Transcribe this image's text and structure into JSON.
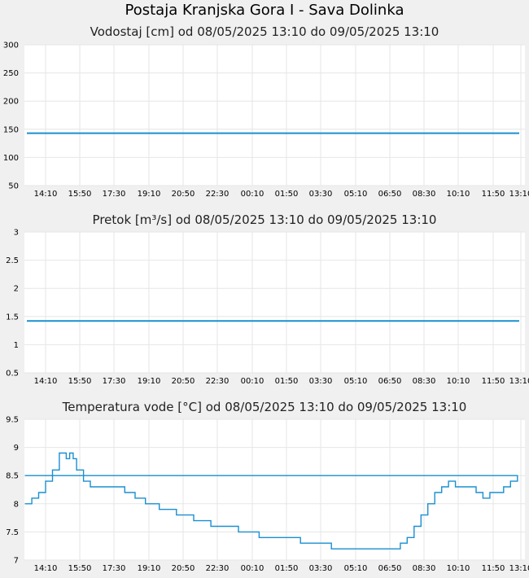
{
  "page": {
    "title": "Postaja Kranjska Gora I - Sava Dolinka"
  },
  "chart_data": [
    {
      "type": "line",
      "title": "Vodostaj [cm] od 08/05/2025 13:10 do 09/05/2025 13:10",
      "ylim": [
        50,
        300
      ],
      "yticks": [
        "300",
        "250",
        "200",
        "150",
        "100",
        "50"
      ],
      "xticks": [
        "14:10",
        "15:50",
        "17:30",
        "19:10",
        "20:50",
        "22:30",
        "00:10",
        "01:50",
        "03:30",
        "05:10",
        "06:50",
        "08:30",
        "10:10",
        "11:50",
        "13:10"
      ],
      "grid": true,
      "color": "#1a8fd1",
      "series": [
        {
          "x": [
            "08/05/2025 13:10",
            "09/05/2025 13:10"
          ],
          "values": [
            143,
            143
          ]
        }
      ]
    },
    {
      "type": "line",
      "title": "Pretok [m³/s] od 08/05/2025 13:10 do 09/05/2025 13:10",
      "ylim": [
        0.5,
        3
      ],
      "yticks": [
        "3",
        "2.5",
        "2",
        "1.5",
        "1",
        "0.5"
      ],
      "xticks": [
        "14:10",
        "15:50",
        "17:30",
        "19:10",
        "20:50",
        "22:30",
        "00:10",
        "01:50",
        "03:30",
        "05:10",
        "06:50",
        "08:30",
        "10:10",
        "11:50",
        "13:10"
      ],
      "grid": true,
      "color": "#1a8fd1",
      "series": [
        {
          "x": [
            "08/05/2025 13:10",
            "09/05/2025 13:10"
          ],
          "values": [
            1.42,
            1.42
          ]
        }
      ]
    },
    {
      "type": "line",
      "title": "Temperatura vode [°C] od 08/05/2025 13:10 do 09/05/2025 13:10",
      "ylim": [
        7,
        9.5
      ],
      "yticks": [
        "9.5",
        "9",
        "8.5",
        "8",
        "7.5",
        "7"
      ],
      "xticks": [
        "14:10",
        "15:50",
        "17:30",
        "19:10",
        "20:50",
        "22:30",
        "00:10",
        "01:50",
        "03:30",
        "05:10",
        "06:50",
        "08:30",
        "10:10",
        "11:50",
        "13:10"
      ],
      "grid": true,
      "color": "#1a8fd1",
      "series": [
        {
          "x": [
            "13:10",
            "13:30",
            "13:50",
            "14:10",
            "14:30",
            "14:50",
            "15:10",
            "15:20",
            "15:30",
            "15:40",
            "16:00",
            "16:20",
            "16:40",
            "17:00",
            "17:30",
            "18:00",
            "18:30",
            "18:40",
            "19:00",
            "19:20",
            "19:40",
            "20:00",
            "20:30",
            "20:50",
            "21:20",
            "21:40",
            "22:10",
            "22:30",
            "23:00",
            "23:30",
            "00:00",
            "00:30",
            "01:00",
            "01:30",
            "02:00",
            "02:30",
            "03:00",
            "03:30",
            "04:00",
            "04:30",
            "05:00",
            "05:30",
            "06:00",
            "06:30",
            "07:00",
            "07:20",
            "07:40",
            "08:00",
            "08:20",
            "08:40",
            "09:00",
            "09:20",
            "09:40",
            "10:00",
            "10:20",
            "10:40",
            "11:00",
            "11:20",
            "11:40",
            "12:00",
            "12:20",
            "12:40",
            "13:00",
            "13:10"
          ],
          "values": [
            8.0,
            8.1,
            8.2,
            8.4,
            8.6,
            8.9,
            8.8,
            8.9,
            8.8,
            8.6,
            8.4,
            8.3,
            8.3,
            8.3,
            8.3,
            8.2,
            8.1,
            8.1,
            8.0,
            8.0,
            7.9,
            7.9,
            7.8,
            7.8,
            7.7,
            7.7,
            7.6,
            7.6,
            7.6,
            7.5,
            7.5,
            7.4,
            7.4,
            7.4,
            7.4,
            7.3,
            7.3,
            7.3,
            7.2,
            7.2,
            7.2,
            7.2,
            7.2,
            7.2,
            7.2,
            7.3,
            7.4,
            7.6,
            7.8,
            8.0,
            8.2,
            8.3,
            8.4,
            8.3,
            8.3,
            8.3,
            8.2,
            8.1,
            8.2,
            8.2,
            8.3,
            8.4,
            8.5,
            8.5
          ]
        }
      ]
    }
  ]
}
